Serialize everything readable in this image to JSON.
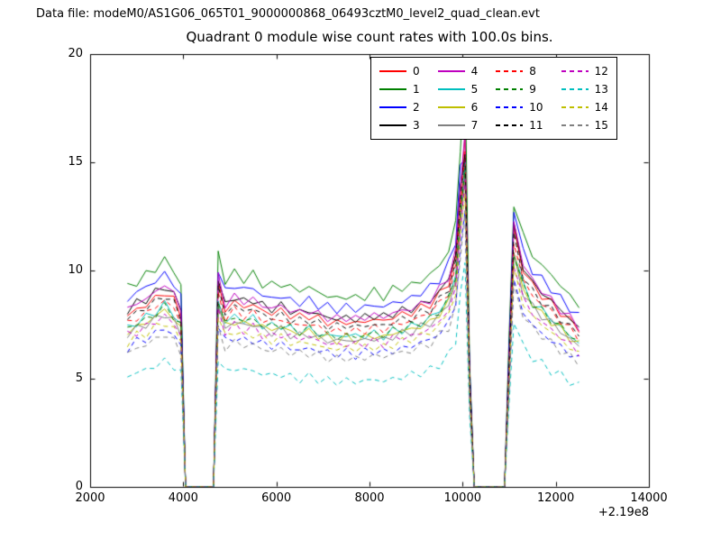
{
  "header": {
    "data_file_label": "Data file: modeM0/AS1G06_065T01_9000000868_06493cztM0_level2_quad_clean.evt"
  },
  "chart_data": {
    "type": "line",
    "title": "Quadrant 0 module wise count rates with 100.0s bins.",
    "xlabel": "",
    "ylabel": "",
    "xlim": [
      2000,
      14000
    ],
    "ylim": [
      0,
      20
    ],
    "x_offset_label": "+2.19e8",
    "x_ticks": [
      2000,
      4000,
      6000,
      8000,
      10000,
      12000,
      14000
    ],
    "x_tick_labels": [
      "2000",
      "4000",
      "6000",
      "8000",
      "10000",
      "12000",
      "14000"
    ],
    "y_ticks": [
      0,
      5,
      10,
      15,
      20
    ],
    "y_tick_labels": [
      "0",
      "5",
      "10",
      "15",
      "20"
    ],
    "grid": false,
    "legend_position": "upper center-right inside axes",
    "legend_columns": 4,
    "x": [
      2800,
      3000,
      3200,
      3400,
      3600,
      3800,
      3950,
      4050,
      4650,
      4750,
      4900,
      5100,
      5300,
      5500,
      5700,
      5900,
      6100,
      6300,
      6500,
      6700,
      6900,
      7100,
      7300,
      7500,
      7700,
      7900,
      8100,
      8300,
      8500,
      8700,
      8900,
      9100,
      9300,
      9500,
      9700,
      9850,
      9950,
      10050,
      10150,
      10250,
      10900,
      11000,
      11100,
      11300,
      11500,
      11700,
      11900,
      12100,
      12300,
      12500
    ],
    "series": [
      {
        "name": "0",
        "color": "#ff0000",
        "dashed": false,
        "values": [
          7.9,
          8.2,
          8.4,
          8.7,
          9.0,
          8.6,
          8.0,
          0,
          0,
          9.3,
          8.2,
          8.5,
          8.3,
          8.4,
          8.1,
          8.0,
          8.1,
          7.9,
          7.8,
          7.9,
          7.7,
          7.6,
          7.5,
          7.6,
          7.5,
          7.6,
          7.7,
          7.6,
          7.8,
          7.9,
          8.0,
          8.2,
          8.4,
          8.8,
          9.4,
          10.5,
          13.5,
          16.0,
          5.0,
          0,
          0,
          6.0,
          11.8,
          10.0,
          9.2,
          8.8,
          8.4,
          8.0,
          7.6,
          7.2
        ]
      },
      {
        "name": "1",
        "color": "#008000",
        "dashed": false,
        "values": [
          9.1,
          9.4,
          9.7,
          10.0,
          10.4,
          9.9,
          9.2,
          0,
          0,
          10.7,
          9.4,
          9.8,
          9.5,
          9.7,
          9.3,
          9.2,
          9.3,
          9.1,
          9.0,
          9.1,
          8.9,
          8.7,
          8.6,
          8.7,
          8.6,
          8.7,
          8.9,
          8.7,
          9.0,
          9.1,
          9.2,
          9.4,
          9.7,
          10.1,
          10.8,
          12.1,
          15.5,
          19.2,
          5.8,
          0,
          0,
          6.9,
          13.0,
          11.5,
          10.6,
          10.1,
          9.7,
          9.2,
          8.7,
          8.3
        ]
      },
      {
        "name": "2",
        "color": "#0000ff",
        "dashed": false,
        "values": [
          8.5,
          8.9,
          9.1,
          9.4,
          9.7,
          9.3,
          8.6,
          0,
          0,
          10.0,
          8.9,
          9.2,
          9.0,
          9.1,
          8.7,
          8.6,
          8.7,
          8.5,
          8.4,
          8.5,
          8.3,
          8.2,
          8.1,
          8.2,
          8.1,
          8.2,
          8.3,
          8.2,
          8.4,
          8.5,
          8.6,
          8.9,
          9.1,
          9.5,
          10.2,
          11.3,
          14.6,
          15.2,
          5.4,
          0,
          0,
          6.5,
          12.7,
          10.8,
          9.9,
          9.5,
          9.1,
          8.6,
          8.2,
          7.8
        ]
      },
      {
        "name": "3",
        "color": "#000000",
        "dashed": false,
        "values": [
          8.1,
          8.4,
          8.6,
          8.9,
          9.2,
          8.8,
          8.2,
          0,
          0,
          9.5,
          8.4,
          8.7,
          8.5,
          8.6,
          8.3,
          8.2,
          8.3,
          8.1,
          8.0,
          8.1,
          7.9,
          7.8,
          7.7,
          7.8,
          7.7,
          7.8,
          7.9,
          7.8,
          8.0,
          8.1,
          8.2,
          8.4,
          8.6,
          9.0,
          9.6,
          10.7,
          13.8,
          15.5,
          5.1,
          0,
          0,
          6.1,
          12.0,
          10.2,
          9.4,
          9.0,
          8.6,
          8.2,
          7.8,
          7.3
        ]
      },
      {
        "name": "4",
        "color": "#bf00bf",
        "dashed": false,
        "values": [
          8.2,
          8.5,
          8.7,
          9.0,
          9.4,
          8.9,
          8.3,
          0,
          0,
          9.7,
          8.5,
          8.8,
          8.6,
          8.7,
          8.4,
          8.3,
          8.4,
          8.2,
          8.1,
          8.2,
          8.0,
          7.9,
          7.8,
          7.9,
          7.8,
          7.9,
          8.0,
          7.9,
          8.1,
          8.2,
          8.3,
          8.5,
          8.7,
          9.2,
          9.8,
          10.9,
          14.0,
          16.3,
          5.2,
          0,
          0,
          6.2,
          12.3,
          10.4,
          9.6,
          9.2,
          8.7,
          8.3,
          7.9,
          7.5
        ]
      },
      {
        "name": "5",
        "color": "#00bfbf",
        "dashed": false,
        "values": [
          7.4,
          7.7,
          7.9,
          8.2,
          8.5,
          8.1,
          7.5,
          0,
          0,
          8.7,
          7.7,
          8.0,
          7.8,
          7.9,
          7.6,
          7.5,
          7.6,
          7.4,
          7.3,
          7.4,
          7.2,
          7.1,
          7.1,
          7.1,
          7.1,
          7.1,
          7.2,
          7.1,
          7.3,
          7.4,
          7.5,
          7.7,
          7.9,
          8.3,
          8.8,
          9.9,
          12.7,
          15.0,
          4.7,
          0,
          0,
          5.6,
          11.1,
          9.4,
          8.6,
          8.3,
          7.9,
          7.5,
          7.1,
          6.8
        ]
      },
      {
        "name": "6",
        "color": "#bfbf00",
        "dashed": false,
        "values": [
          7.3,
          7.5,
          7.7,
          8.0,
          8.3,
          7.9,
          7.4,
          0,
          0,
          8.6,
          7.5,
          7.8,
          7.6,
          7.7,
          7.5,
          7.4,
          7.5,
          7.3,
          7.2,
          7.3,
          7.1,
          7.0,
          6.9,
          7.0,
          6.9,
          7.0,
          7.1,
          7.0,
          7.2,
          7.3,
          7.4,
          7.5,
          7.7,
          8.1,
          8.6,
          9.7,
          12.4,
          14.7,
          4.6,
          0,
          0,
          5.5,
          10.9,
          9.2,
          8.5,
          8.1,
          7.7,
          7.4,
          7.0,
          6.6
        ]
      },
      {
        "name": "7",
        "color": "#808080",
        "dashed": false,
        "values": [
          7.1,
          7.4,
          7.6,
          7.8,
          8.1,
          7.7,
          7.2,
          0,
          0,
          8.4,
          7.4,
          7.7,
          7.5,
          7.6,
          7.3,
          7.2,
          7.3,
          7.1,
          7.0,
          7.1,
          6.9,
          6.8,
          6.8,
          6.8,
          6.8,
          6.8,
          6.9,
          6.8,
          7.0,
          7.1,
          7.2,
          7.4,
          7.6,
          7.9,
          8.5,
          9.5,
          12.2,
          14.4,
          4.5,
          0,
          0,
          5.4,
          10.6,
          9.0,
          8.3,
          7.9,
          7.6,
          7.2,
          6.8,
          6.5
        ]
      },
      {
        "name": "8",
        "color": "#ff0000",
        "dashed": true,
        "values": [
          7.5,
          7.8,
          8.0,
          8.3,
          8.6,
          8.2,
          7.6,
          0,
          0,
          8.8,
          7.8,
          8.1,
          7.9,
          8.0,
          7.7,
          7.6,
          7.7,
          7.5,
          7.4,
          7.5,
          7.3,
          7.2,
          7.1,
          7.2,
          7.1,
          7.2,
          7.3,
          7.2,
          7.4,
          7.5,
          7.6,
          7.8,
          8.0,
          8.4,
          8.9,
          10.0,
          12.8,
          15.2,
          4.8,
          0,
          0,
          5.7,
          11.2,
          9.5,
          8.7,
          8.4,
          8.0,
          7.6,
          7.2,
          6.8
        ]
      },
      {
        "name": "9",
        "color": "#008000",
        "dashed": true,
        "values": [
          7.2,
          7.5,
          7.6,
          7.9,
          8.2,
          7.8,
          7.3,
          0,
          0,
          8.5,
          7.5,
          7.7,
          7.6,
          7.6,
          7.4,
          7.3,
          7.4,
          7.2,
          7.1,
          7.2,
          7.0,
          6.9,
          6.8,
          6.9,
          6.8,
          6.9,
          7.0,
          6.9,
          7.1,
          7.2,
          7.3,
          7.5,
          7.6,
          8.0,
          8.6,
          9.6,
          12.3,
          14.6,
          4.6,
          0,
          0,
          5.5,
          10.7,
          9.1,
          8.4,
          8.0,
          7.6,
          7.3,
          6.9,
          6.6
        ]
      },
      {
        "name": "10",
        "color": "#0000ff",
        "dashed": true,
        "values": [
          6.3,
          6.6,
          6.7,
          7.0,
          7.2,
          6.9,
          6.4,
          0,
          0,
          7.4,
          6.6,
          6.8,
          6.6,
          6.7,
          6.5,
          6.4,
          6.5,
          6.3,
          6.2,
          6.3,
          6.2,
          6.1,
          6.0,
          6.1,
          6.0,
          6.1,
          6.2,
          6.1,
          6.2,
          6.3,
          6.4,
          6.6,
          6.7,
          7.0,
          7.5,
          8.4,
          10.8,
          12.8,
          4.0,
          0,
          0,
          4.8,
          9.4,
          8.0,
          7.4,
          7.0,
          6.7,
          6.4,
          6.1,
          5.8
        ]
      },
      {
        "name": "11",
        "color": "#000000",
        "dashed": true,
        "values": [
          7.7,
          8.0,
          8.2,
          8.5,
          8.8,
          8.4,
          7.8,
          0,
          0,
          9.1,
          8.0,
          8.3,
          8.1,
          8.2,
          7.9,
          7.8,
          7.9,
          7.7,
          7.6,
          7.7,
          7.5,
          7.4,
          7.4,
          7.4,
          7.4,
          7.4,
          7.5,
          7.4,
          7.6,
          7.7,
          7.8,
          8.0,
          8.2,
          8.6,
          9.2,
          10.3,
          13.2,
          15.3,
          4.9,
          0,
          0,
          5.9,
          11.6,
          9.8,
          9.0,
          8.6,
          8.2,
          7.8,
          7.4,
          7.1
        ]
      },
      {
        "name": "12",
        "color": "#bf00bf",
        "dashed": true,
        "values": [
          7.0,
          7.2,
          7.4,
          7.7,
          7.9,
          7.6,
          7.0,
          0,
          0,
          8.2,
          7.2,
          7.5,
          7.3,
          7.4,
          7.1,
          7.0,
          7.1,
          7.0,
          6.9,
          7.0,
          6.8,
          6.7,
          6.6,
          6.7,
          6.6,
          6.7,
          6.8,
          6.7,
          6.9,
          7.0,
          7.0,
          7.2,
          7.4,
          7.7,
          8.3,
          9.2,
          11.9,
          14.1,
          4.4,
          0,
          0,
          5.3,
          10.4,
          8.8,
          8.1,
          7.7,
          7.4,
          7.0,
          6.7,
          6.3
        ]
      },
      {
        "name": "13",
        "color": "#00bfbf",
        "dashed": true,
        "values": [
          5.2,
          5.4,
          5.5,
          5.7,
          5.9,
          5.7,
          5.3,
          0,
          0,
          6.1,
          5.4,
          5.6,
          5.5,
          5.5,
          5.3,
          5.3,
          5.3,
          5.2,
          5.1,
          5.2,
          5.1,
          5.0,
          5.0,
          5.0,
          5.0,
          5.0,
          5.1,
          5.0,
          5.1,
          5.2,
          5.3,
          5.4,
          5.5,
          5.8,
          6.2,
          6.9,
          8.9,
          10.6,
          3.3,
          0,
          0,
          4.0,
          7.8,
          6.6,
          6.1,
          5.8,
          5.5,
          5.3,
          5.0,
          4.8
        ]
      },
      {
        "name": "14",
        "color": "#bfbf00",
        "dashed": true,
        "values": [
          6.8,
          7.1,
          7.2,
          7.5,
          7.7,
          7.4,
          6.9,
          0,
          0,
          8.0,
          7.1,
          7.3,
          7.1,
          7.2,
          7.0,
          6.9,
          7.0,
          6.8,
          6.7,
          6.8,
          6.6,
          6.5,
          6.5,
          6.5,
          6.5,
          6.5,
          6.6,
          6.5,
          6.7,
          6.8,
          6.9,
          7.1,
          7.2,
          7.6,
          8.1,
          9.0,
          11.6,
          13.8,
          4.3,
          0,
          0,
          5.2,
          10.1,
          8.6,
          7.9,
          7.6,
          7.2,
          6.9,
          6.5,
          6.2
        ]
      },
      {
        "name": "15",
        "color": "#808080",
        "dashed": true,
        "values": [
          6.2,
          6.5,
          6.6,
          6.9,
          7.1,
          6.8,
          6.3,
          0,
          0,
          7.3,
          6.5,
          6.7,
          6.6,
          6.6,
          6.4,
          6.3,
          6.4,
          6.2,
          6.2,
          6.2,
          6.1,
          6.0,
          5.9,
          6.0,
          5.9,
          6.0,
          6.1,
          6.0,
          6.2,
          6.2,
          6.3,
          6.5,
          6.6,
          7.0,
          7.4,
          8.3,
          10.7,
          12.6,
          4.0,
          0,
          0,
          4.7,
          9.3,
          7.9,
          7.3,
          7.0,
          6.6,
          6.3,
          6.0,
          5.7
        ]
      }
    ]
  }
}
